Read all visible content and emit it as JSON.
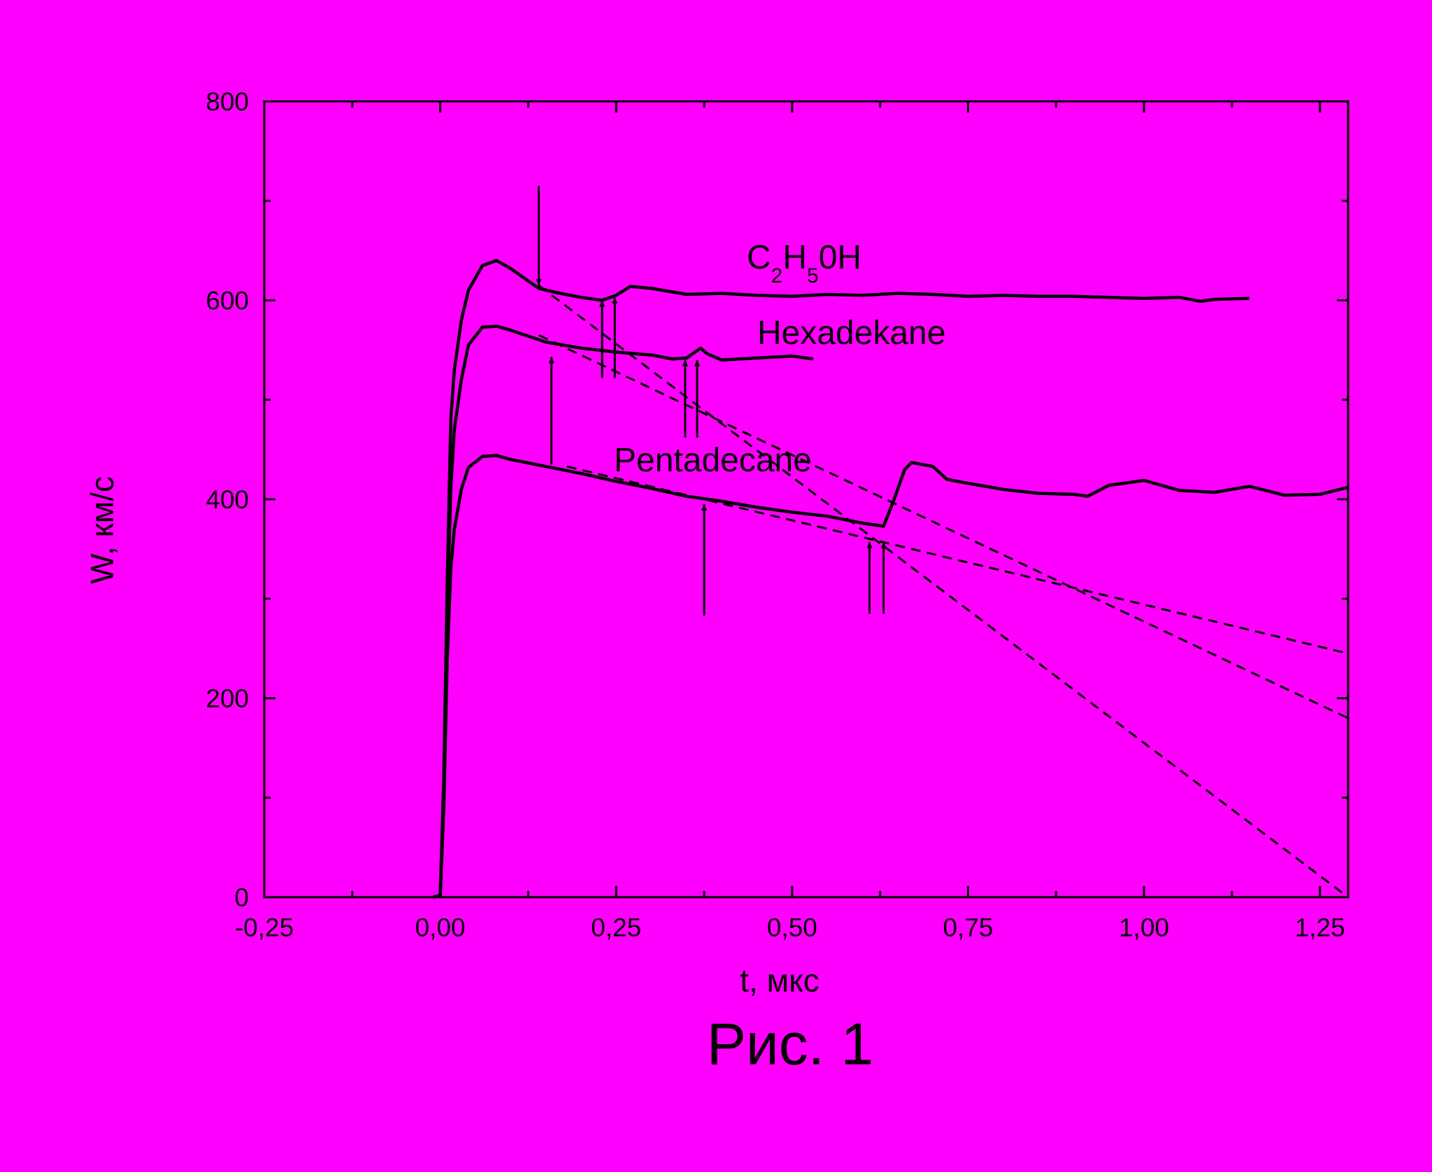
{
  "colors": {
    "background": "#ff00ff",
    "ink": "#000000"
  },
  "chart_data": {
    "type": "line",
    "caption": "Рис. 1",
    "xlabel": "t, мкс",
    "ylabel": "W, км/с",
    "xlim": [
      -0.25,
      1.29
    ],
    "ylim": [
      0,
      800
    ],
    "xticks": [
      -0.25,
      0.0,
      0.25,
      0.5,
      0.75,
      1.0,
      1.25
    ],
    "xtick_labels": [
      "-0,25",
      "0,00",
      "0,25",
      "0,50",
      "0,75",
      "1,00",
      "1,25"
    ],
    "yticks": [
      0,
      200,
      400,
      600,
      800
    ],
    "ytick_labels": [
      "0",
      "200",
      "400",
      "600",
      "800"
    ],
    "grid": false,
    "series": [
      {
        "name": "C2H50H",
        "label_parts": [
          {
            "text": "C",
            "sub": false
          },
          {
            "text": "2",
            "sub": true
          },
          {
            "text": "H",
            "sub": false
          },
          {
            "text": "5",
            "sub": true
          },
          {
            "text": "0H",
            "sub": false
          }
        ],
        "x": [
          -0.01,
          0.0,
          0.005,
          0.01,
          0.015,
          0.02,
          0.03,
          0.04,
          0.06,
          0.08,
          0.1,
          0.12,
          0.14,
          0.17,
          0.2,
          0.23,
          0.25,
          0.27,
          0.3,
          0.35,
          0.4,
          0.45,
          0.5,
          0.55,
          0.6,
          0.65,
          0.7,
          0.75,
          0.8,
          0.85,
          0.9,
          0.95,
          1.0,
          1.05,
          1.08,
          1.1,
          1.15
        ],
        "y": [
          0,
          2,
          120,
          320,
          480,
          530,
          580,
          610,
          635,
          640,
          632,
          622,
          612,
          607,
          603,
          600,
          605,
          614,
          612,
          606,
          607,
          605,
          604,
          606,
          605,
          607,
          606,
          604,
          605,
          604,
          604,
          603,
          602,
          603,
          599,
          601,
          602
        ]
      },
      {
        "name": "Hexadekane",
        "x": [
          -0.01,
          0.0,
          0.005,
          0.01,
          0.015,
          0.02,
          0.03,
          0.04,
          0.06,
          0.08,
          0.1,
          0.15,
          0.2,
          0.25,
          0.3,
          0.33,
          0.35,
          0.37,
          0.38,
          0.4,
          0.45,
          0.5,
          0.53
        ],
        "y": [
          0,
          2,
          110,
          290,
          410,
          470,
          520,
          555,
          573,
          574,
          570,
          558,
          552,
          548,
          545,
          541,
          542,
          552,
          546,
          540,
          542,
          544,
          541
        ]
      },
      {
        "name": "Pentadecane",
        "x": [
          -0.01,
          0.0,
          0.005,
          0.01,
          0.015,
          0.02,
          0.03,
          0.04,
          0.06,
          0.08,
          0.1,
          0.15,
          0.2,
          0.25,
          0.3,
          0.35,
          0.4,
          0.45,
          0.5,
          0.55,
          0.6,
          0.63,
          0.645,
          0.66,
          0.67,
          0.7,
          0.72,
          0.75,
          0.8,
          0.85,
          0.9,
          0.92,
          0.95,
          1.0,
          1.05,
          1.1,
          1.15,
          1.2,
          1.25,
          1.29
        ],
        "y": [
          0,
          2,
          90,
          240,
          330,
          370,
          410,
          432,
          443,
          444,
          440,
          433,
          426,
          418,
          411,
          403,
          398,
          392,
          387,
          383,
          376,
          373,
          400,
          430,
          437,
          433,
          420,
          416,
          410,
          406,
          405,
          403,
          414,
          419,
          409,
          407,
          413,
          404,
          405,
          412
        ]
      }
    ],
    "fit_lines": [
      {
        "x": [
          0.14,
          1.29
        ],
        "y": [
          615,
          0
        ]
      },
      {
        "x": [
          0.14,
          1.29
        ],
        "y": [
          565,
          180
        ]
      },
      {
        "x": [
          0.18,
          1.29
        ],
        "y": [
          433,
          245
        ]
      }
    ],
    "arrows": [
      {
        "x": 0.14,
        "from_y": 715,
        "to_y": 615
      },
      {
        "x": 0.23,
        "from_y": 522,
        "to_y": 600
      },
      {
        "x": 0.248,
        "from_y": 522,
        "to_y": 603
      },
      {
        "x": 0.158,
        "from_y": 435,
        "to_y": 543
      },
      {
        "x": 0.348,
        "from_y": 462,
        "to_y": 540
      },
      {
        "x": 0.365,
        "from_y": 462,
        "to_y": 540
      },
      {
        "x": 0.375,
        "from_y": 283,
        "to_y": 395
      },
      {
        "x": 0.61,
        "from_y": 285,
        "to_y": 357
      },
      {
        "x": 0.63,
        "from_y": 285,
        "to_y": 357
      }
    ]
  }
}
